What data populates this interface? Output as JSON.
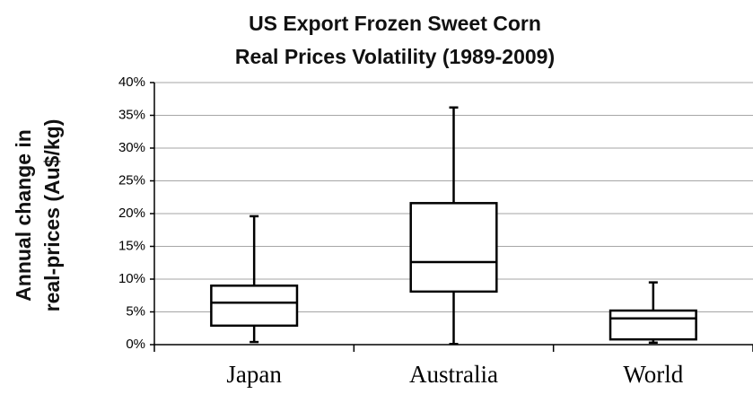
{
  "chart_data": {
    "type": "box",
    "title": [
      "US Export Frozen Sweet Corn",
      "Real Prices Volatility (1989-2009)"
    ],
    "y_label": [
      "Annual change in",
      "real-prices (Au$/kg)"
    ],
    "categories": [
      "Japan",
      "Australia",
      "World"
    ],
    "min": [
      0.4,
      0.1,
      0.3
    ],
    "q1": [
      2.9,
      8.1,
      0.8
    ],
    "median": [
      6.4,
      12.6,
      4.0
    ],
    "q3": [
      9.0,
      21.6,
      5.2
    ],
    "max": [
      19.6,
      36.2,
      9.5
    ],
    "ylim": [
      0,
      40
    ],
    "yticks": [
      {
        "value": 0,
        "label": "0%"
      },
      {
        "value": 5,
        "label": "5%"
      },
      {
        "value": 10,
        "label": "10%"
      },
      {
        "value": 15,
        "label": "15%"
      },
      {
        "value": 20,
        "label": "20%"
      },
      {
        "value": 25,
        "label": "25%"
      },
      {
        "value": 30,
        "label": "30%"
      },
      {
        "value": 35,
        "label": "35%"
      },
      {
        "value": 40,
        "label": "40%"
      }
    ],
    "grid": true,
    "color": "#000000"
  }
}
